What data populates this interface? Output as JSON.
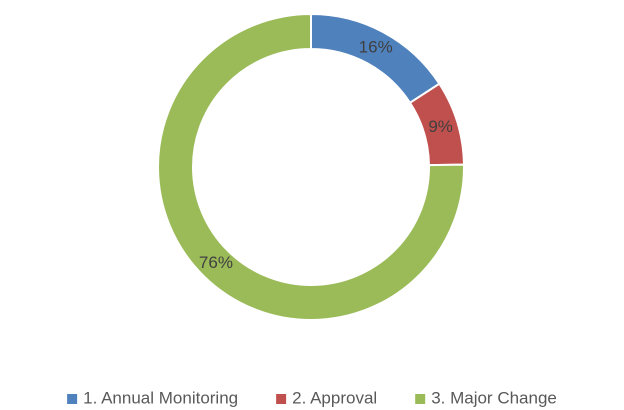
{
  "chart_data": {
    "type": "donut",
    "categories": [
      "1. Annual Monitoring",
      "2. Approval",
      "3. Major Change"
    ],
    "values": [
      16,
      9,
      76
    ],
    "value_labels": [
      "16%",
      "9%",
      "76%"
    ],
    "colors": [
      "#4f81bd",
      "#c0504d",
      "#9bbb59"
    ],
    "legend": "bottom"
  }
}
